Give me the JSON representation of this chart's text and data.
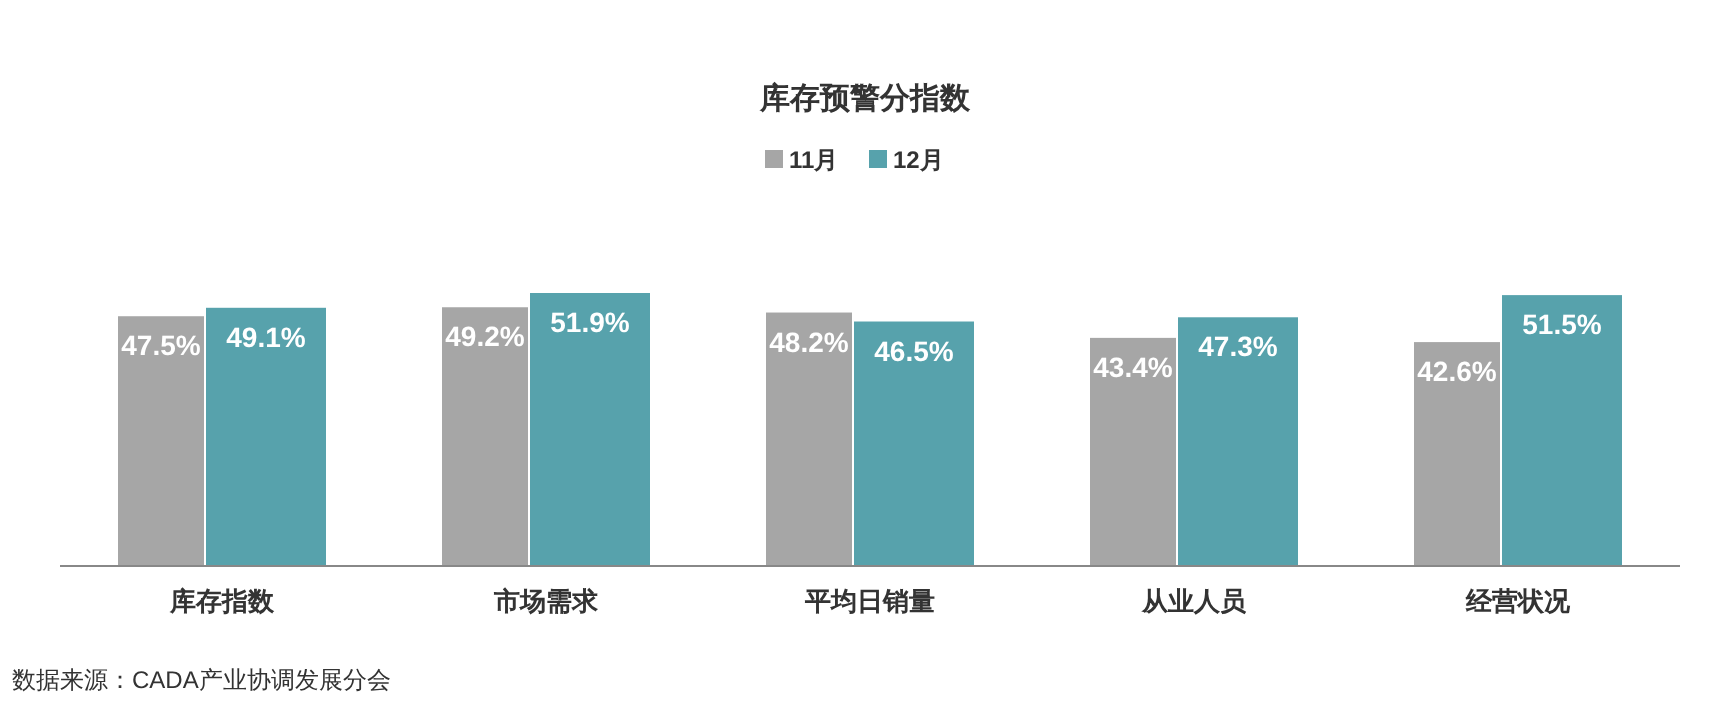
{
  "chart_data": {
    "type": "bar",
    "title": "库存预警分指数",
    "legend": "top",
    "categories": [
      "库存指数",
      "市场需求",
      "平均日销量",
      "从业人员",
      "经营状况"
    ],
    "series": [
      {
        "name": "11月",
        "color": "#a6a6a6",
        "values": [
          47.5,
          49.2,
          48.2,
          43.4,
          42.6
        ],
        "value_labels": [
          "47.5%",
          "49.2%",
          "48.2%",
          "43.4%",
          "42.6%"
        ]
      },
      {
        "name": "12月",
        "color": "#57a2ac",
        "values": [
          49.1,
          51.9,
          46.5,
          47.3,
          51.5
        ],
        "value_labels": [
          "49.1%",
          "51.9%",
          "46.5%",
          "47.3%",
          "51.5%"
        ]
      }
    ],
    "annotations": [
      "数据来源：CADA产业协调发展分会"
    ]
  }
}
